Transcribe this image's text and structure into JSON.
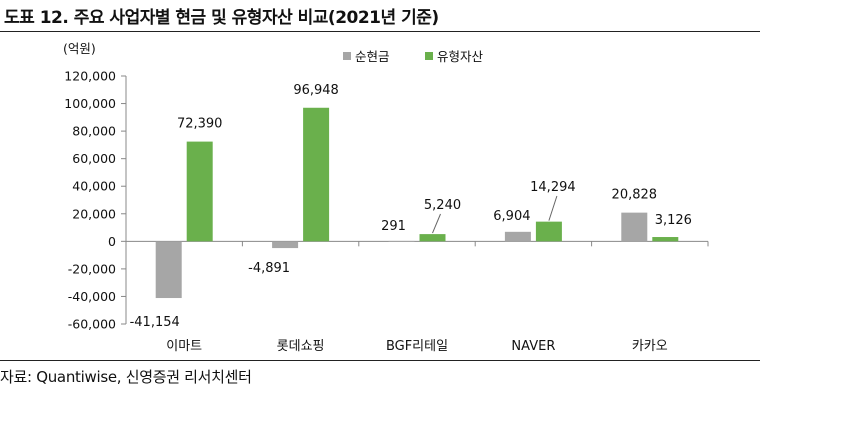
{
  "figure": {
    "title": "도표 12. 주요 사업자별 현금 및 유형자산 비교(2021년 기준)",
    "source": "자료: Quantiwise, 신영증권 리서치센터"
  },
  "chart_data": {
    "type": "bar",
    "unit_label": "(억원)",
    "categories": [
      "이마트",
      "롯데쇼핑",
      "BGF리테일",
      "NAVER",
      "카카오"
    ],
    "series": [
      {
        "name": "순현금",
        "color": "#a6a6a6",
        "values": [
          -41154,
          -4891,
          291,
          6904,
          20828
        ]
      },
      {
        "name": "유형자산",
        "color": "#6ab04c",
        "values": [
          72390,
          96948,
          5240,
          14294,
          3126
        ]
      }
    ],
    "ylim": [
      -60000,
      120000
    ],
    "yticks": [
      120000,
      100000,
      80000,
      60000,
      40000,
      20000,
      0,
      -20000,
      -40000,
      -60000
    ],
    "ytick_labels": [
      "120,000",
      "100,000",
      "80,000",
      "60,000",
      "40,000",
      "20,000",
      "0",
      "-20,000",
      "-40,000",
      "-60,000"
    ],
    "data_labels": [
      [
        "-41,154",
        "72,390"
      ],
      [
        "-4,891",
        "96,948"
      ],
      [
        "291",
        "5,240"
      ],
      [
        "6,904",
        "14,294"
      ],
      [
        "20,828",
        "3,126"
      ]
    ],
    "legend_position": "top-center",
    "grid": false
  }
}
